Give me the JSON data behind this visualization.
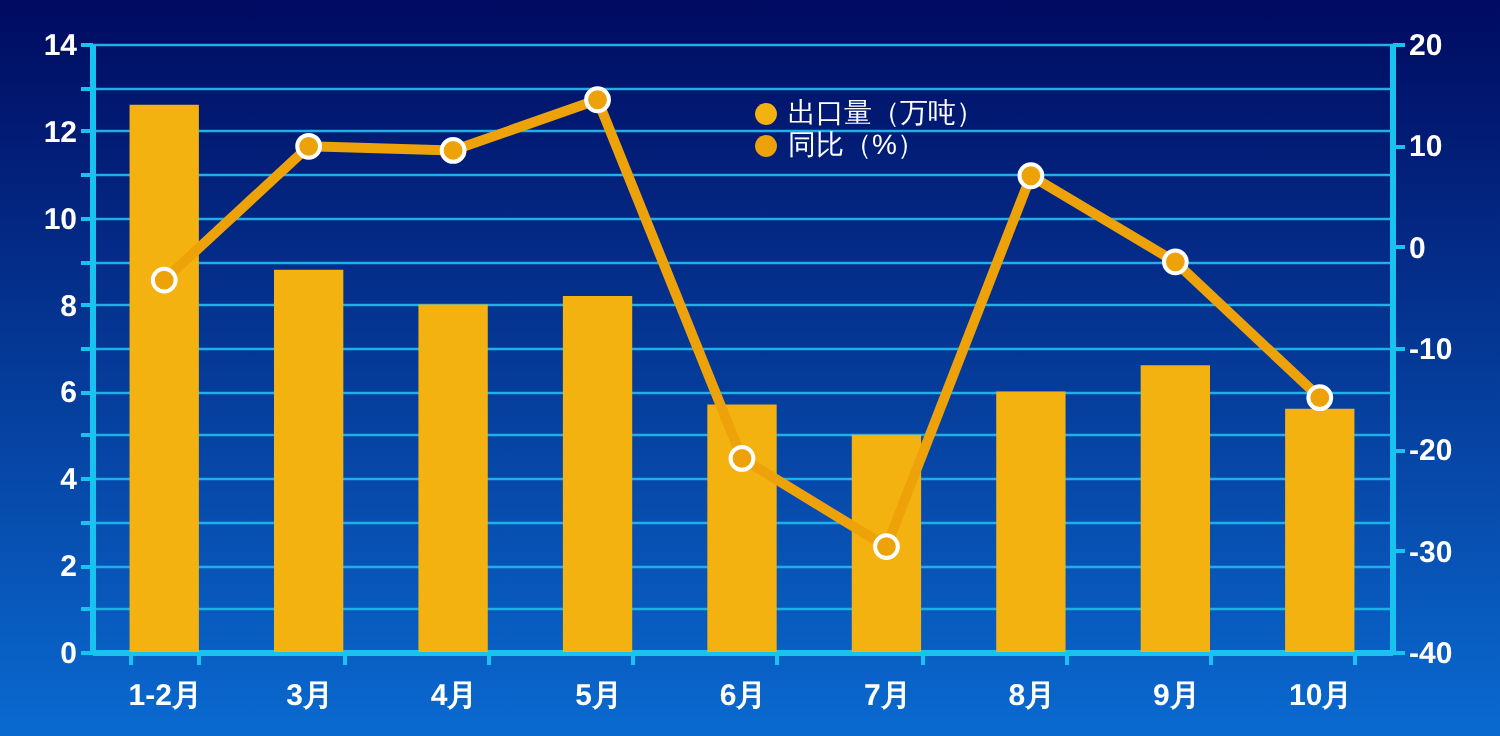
{
  "chart_data": {
    "type": "bar",
    "categories": [
      "1-2月",
      "3月",
      "4月",
      "5月",
      "6月",
      "7月",
      "8月",
      "9月",
      "10月"
    ],
    "series": [
      {
        "name": "出口量（万吨）",
        "color": "#f4b210",
        "values": [
          12.6,
          8.8,
          8.0,
          8.2,
          5.7,
          5.0,
          6.0,
          6.6,
          5.6
        ]
      },
      {
        "name": "同比（%）",
        "type": "line",
        "axis": "y2",
        "color": "#eea20a",
        "values": [
          -3.3,
          9.9,
          9.5,
          14.5,
          -20.9,
          -29.6,
          7.0,
          -1.5,
          -14.9
        ]
      }
    ],
    "ylim": [
      0,
      14
    ],
    "yticks": [
      0,
      {
        "value": 1,
        "label": null
      },
      2,
      {
        "value": 3,
        "label": null
      },
      4,
      {
        "value": 5,
        "label": null
      },
      6,
      {
        "value": 7,
        "label": null
      },
      8,
      {
        "value": 9,
        "label": null
      },
      10,
      {
        "value": 11,
        "label": null
      },
      12,
      {
        "value": 13,
        "label": null
      },
      14
    ],
    "y2lim": [
      -40,
      20
    ],
    "y2ticks": [
      -40,
      -30,
      -20,
      -10,
      0,
      10,
      20
    ],
    "grid": "y",
    "legend": "top",
    "marker": "circle",
    "line_style": "solid"
  }
}
